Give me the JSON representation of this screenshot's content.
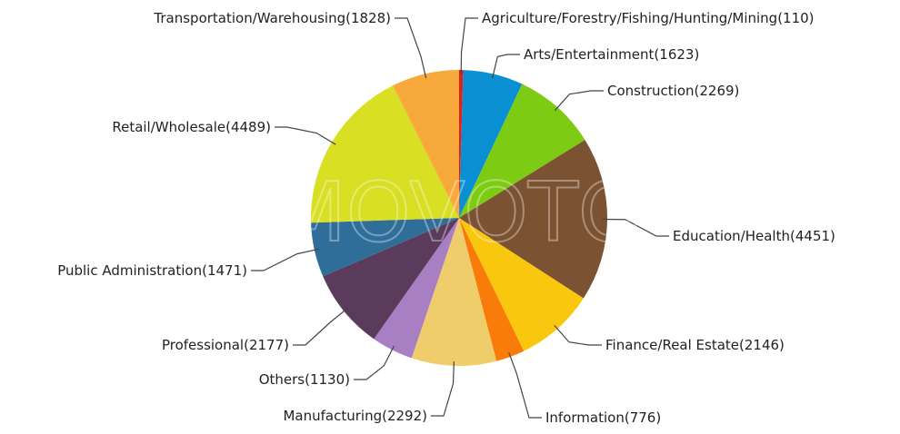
{
  "chart_data": {
    "type": "pie",
    "watermark": "MOVOTO",
    "categories": [
      "Agriculture/Forestry/Fishing/Hunting/Mining",
      "Arts/Entertainment",
      "Construction",
      "Education/Health",
      "Finance/Real Estate",
      "Information",
      "Manufacturing",
      "Others",
      "Professional",
      "Public Administration",
      "Retail/Wholesale",
      "Transportation/Warehousing"
    ],
    "values": [
      110,
      1623,
      2269,
      4451,
      2146,
      776,
      2292,
      1130,
      2177,
      1471,
      4489,
      1828
    ],
    "value_labels": [
      "(110)",
      "(1623)",
      "(2269)",
      "(4451)",
      "(2146)",
      "(776)",
      "(2292)",
      "(1130)",
      "(2177)",
      "(1471)",
      "(4489)",
      "(1828)"
    ],
    "colors": [
      "#e0201b",
      "#0a8fd3",
      "#7ecb14",
      "#7b5232",
      "#f9c80e",
      "#f97c0a",
      "#f0cd6b",
      "#a97fc4",
      "#5a3b5c",
      "#2f6e98",
      "#d9df22",
      "#f8a93b"
    ]
  }
}
